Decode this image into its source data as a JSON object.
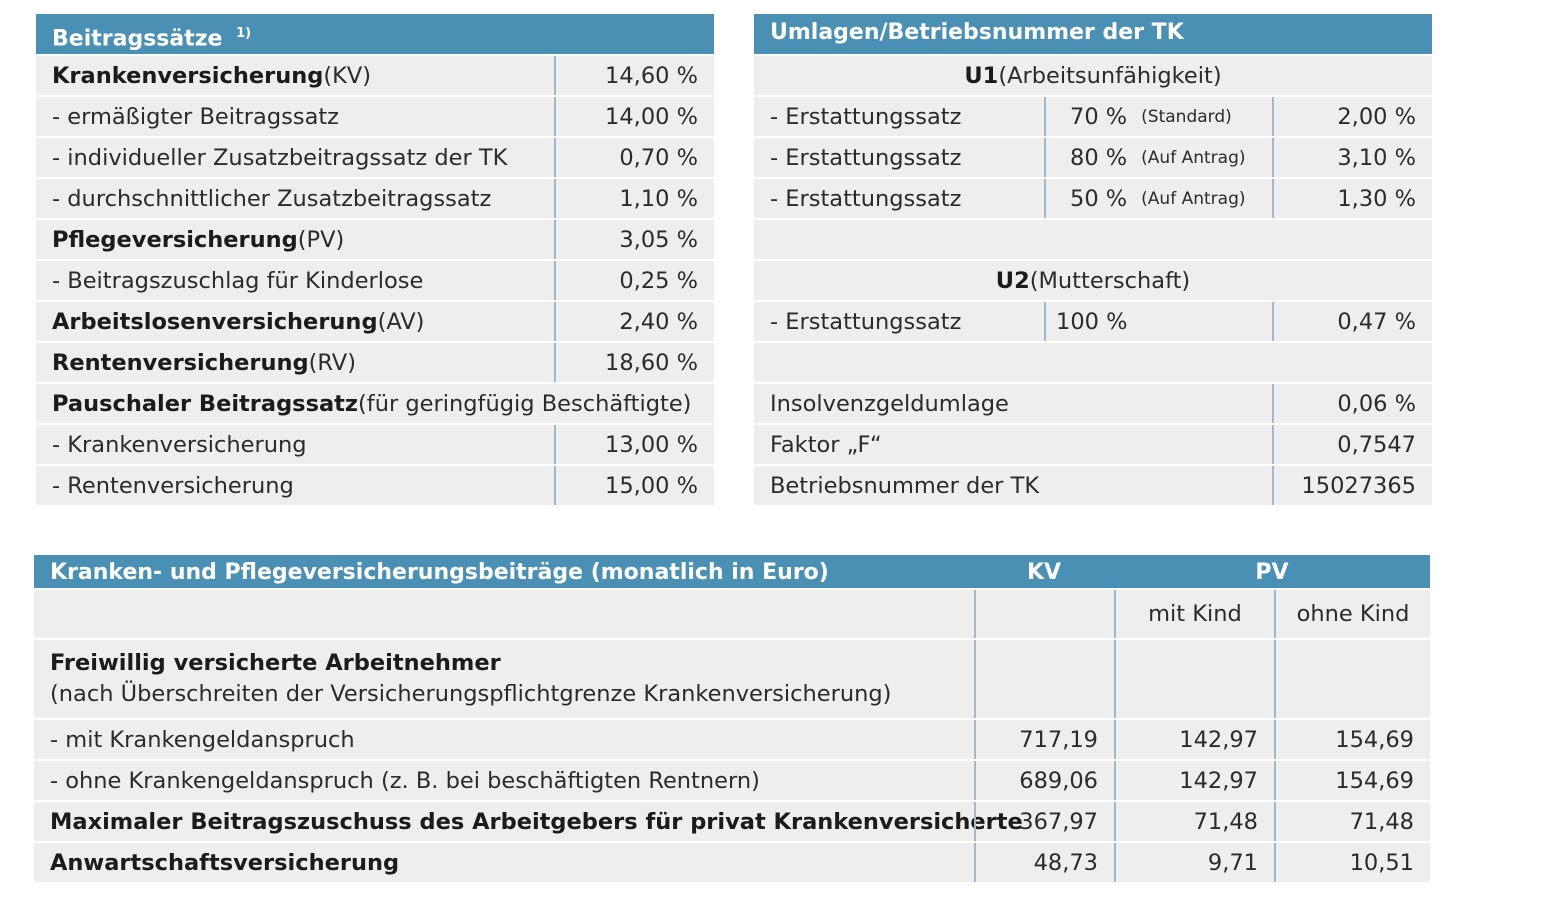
{
  "beitragssaetze": {
    "title": "Beitragssätze",
    "footnote": "1)",
    "rows": [
      {
        "bold": "Krankenversicherung",
        "rest": " (KV)",
        "value": "14,60 %"
      },
      {
        "bold": "",
        "rest": "- ermäßigter Beitragssatz",
        "value": "14,00 %"
      },
      {
        "bold": "",
        "rest": "- individueller Zusatzbeitragssatz der TK",
        "value": "0,70 %"
      },
      {
        "bold": "",
        "rest": "- durchschnittlicher Zusatzbeitragssatz",
        "value": "1,10 %"
      },
      {
        "bold": "Pflegeversicherung",
        "rest": " (PV)",
        "value": "3,05 %"
      },
      {
        "bold": "",
        "rest": "- Beitragszuschlag für Kinderlose",
        "value": "0,25 %"
      },
      {
        "bold": "Arbeitslosenversicherung",
        "rest": " (AV)",
        "value": "2,40 %"
      },
      {
        "bold": "Rentenversicherung",
        "rest": " (RV)",
        "value": "18,60 %"
      },
      {
        "bold": "Pauschaler Beitragssatz",
        "rest": " (für geringfügig Beschäftigte)",
        "value": ""
      },
      {
        "bold": "",
        "rest": "- Krankenversicherung",
        "value": "13,00 %"
      },
      {
        "bold": "",
        "rest": "- Rentenversicherung",
        "value": "15,00 %"
      }
    ]
  },
  "umlagen": {
    "title": "Umlagen/Betriebsnummer der TK",
    "u1": {
      "bold": "U1",
      "rest": " (Arbeitsunfähigkeit)"
    },
    "u1_rows": [
      {
        "label": "- Erstattungssatz",
        "pct": "70 %",
        "note": "(Standard)",
        "value": "2,00 %"
      },
      {
        "label": "- Erstattungssatz",
        "pct": "80 %",
        "note": "(Auf Antrag)",
        "value": "3,10 %"
      },
      {
        "label": "- Erstattungssatz",
        "pct": "50 %",
        "note": "(Auf Antrag)",
        "value": "1,30 %"
      }
    ],
    "u2": {
      "bold": "U2",
      "rest": " (Mutterschaft)"
    },
    "u2_row": {
      "label": "- Erstattungssatz",
      "pct": "100 %",
      "value": "0,47 %"
    },
    "insolvenz": {
      "label": "Insolvenzgeldumlage",
      "value": "0,06 %"
    },
    "faktor": {
      "label": "Faktor „F“",
      "value": "0,7547"
    },
    "betriebsnummer": {
      "label": "Betriebsnummer der TK",
      "value": "15027365"
    }
  },
  "beitraege": {
    "title": "Kranken- und Pflegeversicherungsbeiträge (monatlich in Euro)",
    "col_kv": "KV",
    "col_pv": "PV",
    "sub_mit": "mit Kind",
    "sub_ohne": "ohne Kind",
    "freiwillig_bold": "Freiwillig versicherte Arbeitnehmer",
    "freiwillig_note": "(nach Überschreiten der Versicherungspflichtgrenze Krankenversicherung)",
    "rows": [
      {
        "label": "- mit Krankengeldanspruch",
        "bold": false,
        "kv": "717,19",
        "mit": "142,97",
        "ohne": "154,69"
      },
      {
        "label": "- ohne Krankengeldanspruch (z. B. bei beschäftigten Rentnern)",
        "bold": false,
        "kv": "689,06",
        "mit": "142,97",
        "ohne": "154,69"
      },
      {
        "label": "Maximaler Beitragszuschuss des Arbeitgebers für privat Krankenversicherte",
        "bold": true,
        "kv": "367,97",
        "mit": "71,48",
        "ohne": "71,48"
      },
      {
        "label": "Anwartschaftsversicherung",
        "bold": true,
        "kv": "48,73",
        "mit": "9,71",
        "ohne": "10,51"
      }
    ]
  },
  "colors": {
    "header": "#4a90b4",
    "row": "#eeeeee",
    "divider": "#9fb9cb"
  }
}
